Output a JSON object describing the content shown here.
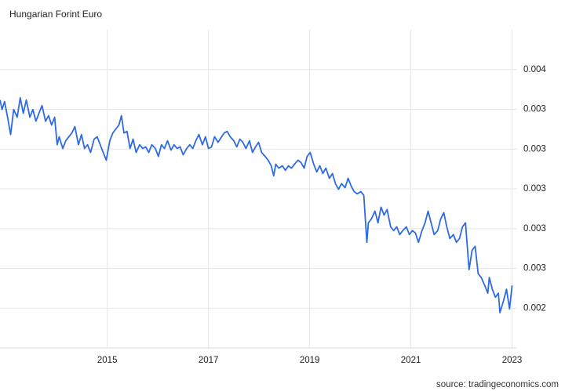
{
  "chart_data": {
    "type": "line",
    "title": "Hungarian Forint Euro",
    "source": "source: tradingeconomics.com",
    "x": [
      2012.88,
      2012.92,
      2012.97,
      2013.03,
      2013.09,
      2013.15,
      2013.22,
      2013.28,
      2013.34,
      2013.4,
      2013.47,
      2013.53,
      2013.59,
      2013.65,
      2013.71,
      2013.78,
      2013.84,
      2013.9,
      2013.96,
      2014.01,
      2014.05,
      2014.12,
      2014.18,
      2014.24,
      2014.3,
      2014.36,
      2014.43,
      2014.49,
      2014.55,
      2014.61,
      2014.67,
      2014.74,
      2014.8,
      2014.86,
      2014.92,
      2014.98,
      2015.05,
      2015.11,
      2015.17,
      2015.23,
      2015.28,
      2015.33,
      2015.39,
      2015.45,
      2015.51,
      2015.57,
      2015.64,
      2015.7,
      2015.76,
      2015.82,
      2015.88,
      2015.95,
      2016.01,
      2016.07,
      2016.13,
      2016.19,
      2016.26,
      2016.32,
      2016.38,
      2016.44,
      2016.5,
      2016.57,
      2016.63,
      2016.69,
      2016.75,
      2016.81,
      2016.88,
      2016.94,
      2017.0,
      2017.06,
      2017.12,
      2017.19,
      2017.25,
      2017.31,
      2017.37,
      2017.43,
      2017.5,
      2017.56,
      2017.62,
      2017.68,
      2017.74,
      2017.81,
      2017.87,
      2017.93,
      2017.99,
      2018.05,
      2018.12,
      2018.18,
      2018.24,
      2018.29,
      2018.33,
      2018.39,
      2018.46,
      2018.52,
      2018.58,
      2018.64,
      2018.7,
      2018.77,
      2018.83,
      2018.89,
      2018.95,
      2019.01,
      2019.08,
      2019.14,
      2019.2,
      2019.26,
      2019.32,
      2019.39,
      2019.45,
      2019.51,
      2019.57,
      2019.63,
      2019.7,
      2019.76,
      2019.82,
      2019.88,
      2019.94,
      2020.01,
      2020.07,
      2020.13,
      2020.16,
      2020.22,
      2020.29,
      2020.35,
      2020.41,
      2020.47,
      2020.53,
      2020.6,
      2020.66,
      2020.72,
      2020.78,
      2020.84,
      2020.91,
      2020.97,
      2021.03,
      2021.09,
      2021.15,
      2021.22,
      2021.28,
      2021.34,
      2021.4,
      2021.46,
      2021.53,
      2021.59,
      2021.65,
      2021.71,
      2021.77,
      2021.84,
      2021.9,
      2021.96,
      2022.02,
      2022.08,
      2022.15,
      2022.21,
      2022.27,
      2022.33,
      2022.39,
      2022.46,
      2022.52,
      2022.55,
      2022.61,
      2022.67,
      2022.73,
      2022.76,
      2022.83,
      2022.89,
      2022.95,
      2023.0
    ],
    "series": [
      {
        "name": "Hungarian Forint Euro",
        "color": "#2f6ae0",
        "values": [
          0.003447,
          0.003399,
          0.003439,
          0.00336,
          0.003273,
          0.003399,
          0.00336,
          0.003458,
          0.00338,
          0.003447,
          0.00336,
          0.003399,
          0.00334,
          0.00338,
          0.003419,
          0.00334,
          0.003368,
          0.003321,
          0.00336,
          0.003222,
          0.003262,
          0.003203,
          0.003242,
          0.003262,
          0.003281,
          0.003313,
          0.003222,
          0.003273,
          0.003203,
          0.003222,
          0.003183,
          0.00325,
          0.003262,
          0.003222,
          0.003183,
          0.003144,
          0.003242,
          0.003281,
          0.003301,
          0.003321,
          0.003368,
          0.003281,
          0.003289,
          0.003203,
          0.00325,
          0.003183,
          0.003222,
          0.003203,
          0.003211,
          0.003183,
          0.003222,
          0.003203,
          0.003163,
          0.003222,
          0.003203,
          0.003242,
          0.003195,
          0.003222,
          0.003203,
          0.003211,
          0.003171,
          0.003203,
          0.003222,
          0.003203,
          0.003242,
          0.003273,
          0.003222,
          0.003262,
          0.003203,
          0.003211,
          0.003262,
          0.003234,
          0.003258,
          0.003281,
          0.003289,
          0.003262,
          0.003242,
          0.003211,
          0.00325,
          0.003234,
          0.003203,
          0.003242,
          0.003183,
          0.003211,
          0.003234,
          0.003183,
          0.003163,
          0.003144,
          0.003116,
          0.003065,
          0.003124,
          0.003104,
          0.003116,
          0.003093,
          0.003116,
          0.003104,
          0.003124,
          0.003144,
          0.003132,
          0.003104,
          0.003163,
          0.003183,
          0.003124,
          0.003085,
          0.003116,
          0.003077,
          0.003104,
          0.003053,
          0.003077,
          0.003026,
          0.002998,
          0.003026,
          0.003006,
          0.003053,
          0.003014,
          0.002986,
          0.002975,
          0.002986,
          0.002967,
          0.002731,
          0.002829,
          0.002849,
          0.002888,
          0.002829,
          0.002908,
          0.002868,
          0.002896,
          0.002809,
          0.00279,
          0.002809,
          0.00277,
          0.00279,
          0.002809,
          0.00277,
          0.00279,
          0.002778,
          0.002731,
          0.00279,
          0.002829,
          0.002888,
          0.002829,
          0.00277,
          0.00279,
          0.002849,
          0.00288,
          0.002809,
          0.00275,
          0.00277,
          0.002731,
          0.00275,
          0.002809,
          0.002829,
          0.002593,
          0.002691,
          0.002711,
          0.002573,
          0.002554,
          0.002514,
          0.002475,
          0.002554,
          0.002495,
          0.002455,
          0.002475,
          0.002377,
          0.002436,
          0.002495,
          0.002396,
          0.002514
        ]
      }
    ],
    "xlim": [
      2012.88,
      2023.1
    ],
    "xticks": [
      2015,
      2017,
      2019,
      2021,
      2023
    ],
    "ylim": [
      0.0022,
      0.0038
    ],
    "yticks": [
      {
        "value": 0.0024,
        "label": "0.002"
      },
      {
        "value": 0.0026,
        "label": "0.003"
      },
      {
        "value": 0.0028,
        "label": "0.003"
      },
      {
        "value": 0.003,
        "label": "0.003"
      },
      {
        "value": 0.0032,
        "label": "0.003"
      },
      {
        "value": 0.0034,
        "label": "0.003"
      },
      {
        "value": 0.0036,
        "label": "0.004"
      }
    ],
    "grid": true
  }
}
